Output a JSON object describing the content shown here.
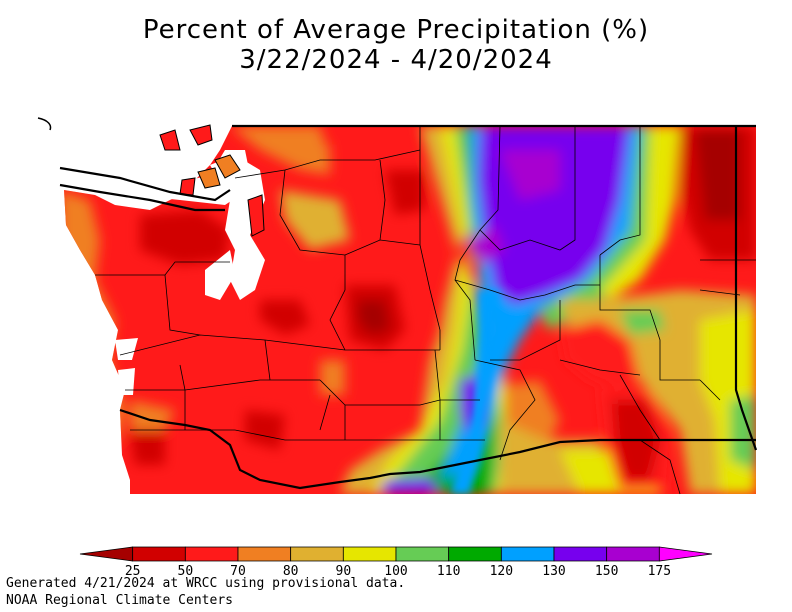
{
  "title_line1": "Percent of Average Precipitation (%)",
  "title_line2": "3/22/2024 - 4/20/2024",
  "legend": {
    "ticks": [
      "25",
      "50",
      "70",
      "80",
      "90",
      "100",
      "110",
      "120",
      "130",
      "150",
      "175"
    ],
    "colors": [
      "#a50000",
      "#d10000",
      "#ff1a1a",
      "#f07f22",
      "#e0b030",
      "#e6e600",
      "#66cc55",
      "#00aa00",
      "#00a0ff",
      "#7700ee",
      "#a800d0",
      "#ff00ff"
    ]
  },
  "footer_line1": "Generated 4/21/2024 at WRCC using provisional data.",
  "footer_line2": "NOAA Regional Climate Centers"
}
